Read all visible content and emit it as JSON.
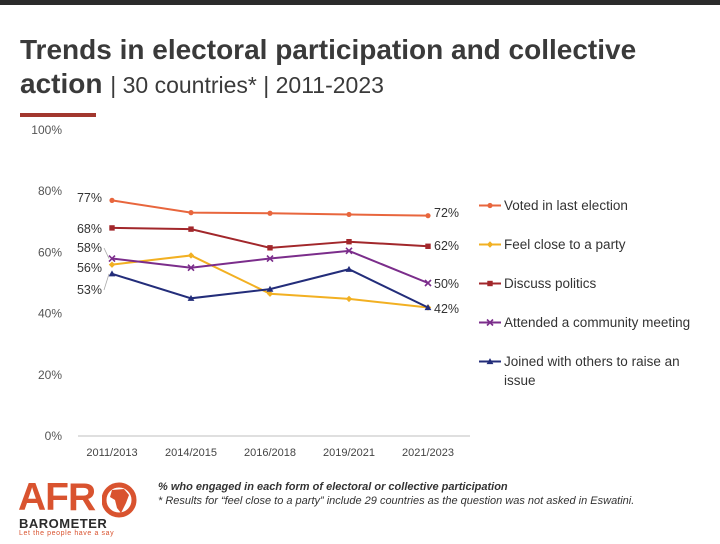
{
  "title": {
    "main": "Trends in electoral participation and collective action",
    "sub": "| 30 countries* | 2011-2023"
  },
  "chart_data": {
    "type": "line",
    "categories": [
      "2011/2013",
      "2014/2015",
      "2016/2018",
      "2019/2021",
      "2021/2023"
    ],
    "ylim": [
      0,
      100
    ],
    "yticks": [
      "0%",
      "20%",
      "40%",
      "60%",
      "80%",
      "100%"
    ],
    "ytick_values": [
      0,
      20,
      40,
      60,
      80,
      100
    ],
    "legend_position": "right",
    "series": [
      {
        "name": "Voted in last election",
        "values": [
          77,
          73,
          72.8,
          72.4,
          72
        ],
        "color": "#e8663d",
        "marker": "circle",
        "labels": {
          "start": "77%",
          "end": "72%"
        }
      },
      {
        "name": "Feel close to a party",
        "values": [
          56,
          59,
          46.5,
          44.8,
          42
        ],
        "color": "#f2b022",
        "marker": "diamond",
        "labels": {
          "start": "56%",
          "end": ""
        }
      },
      {
        "name": "Discuss politics",
        "values": [
          68,
          67.6,
          61.5,
          63.5,
          62
        ],
        "color": "#a2272b",
        "marker": "square",
        "labels": {
          "start": "68%",
          "end": "62%"
        }
      },
      {
        "name": "Attended a community meeting",
        "values": [
          58,
          55,
          58,
          60.5,
          50
        ],
        "color": "#7b2d8b",
        "marker": "x",
        "labels": {
          "start": "58%",
          "end": "50%"
        }
      },
      {
        "name": "Joined with others to raise an issue",
        "values": [
          53,
          45,
          48,
          54.5,
          42
        ],
        "color": "#232d7a",
        "marker": "triangle",
        "labels": {
          "start": "53%",
          "end": "42%"
        }
      }
    ]
  },
  "footnote": {
    "line1": "% who engaged in each form of electoral or collective participation",
    "line2": "* Results for “feel close to a party” include 29 countries as the question was not asked in Eswatini."
  },
  "logo": {
    "name": "AFRO",
    "sub": "BAROMETER",
    "tagline": "Let the people have a say",
    "color": "#d9532f"
  }
}
